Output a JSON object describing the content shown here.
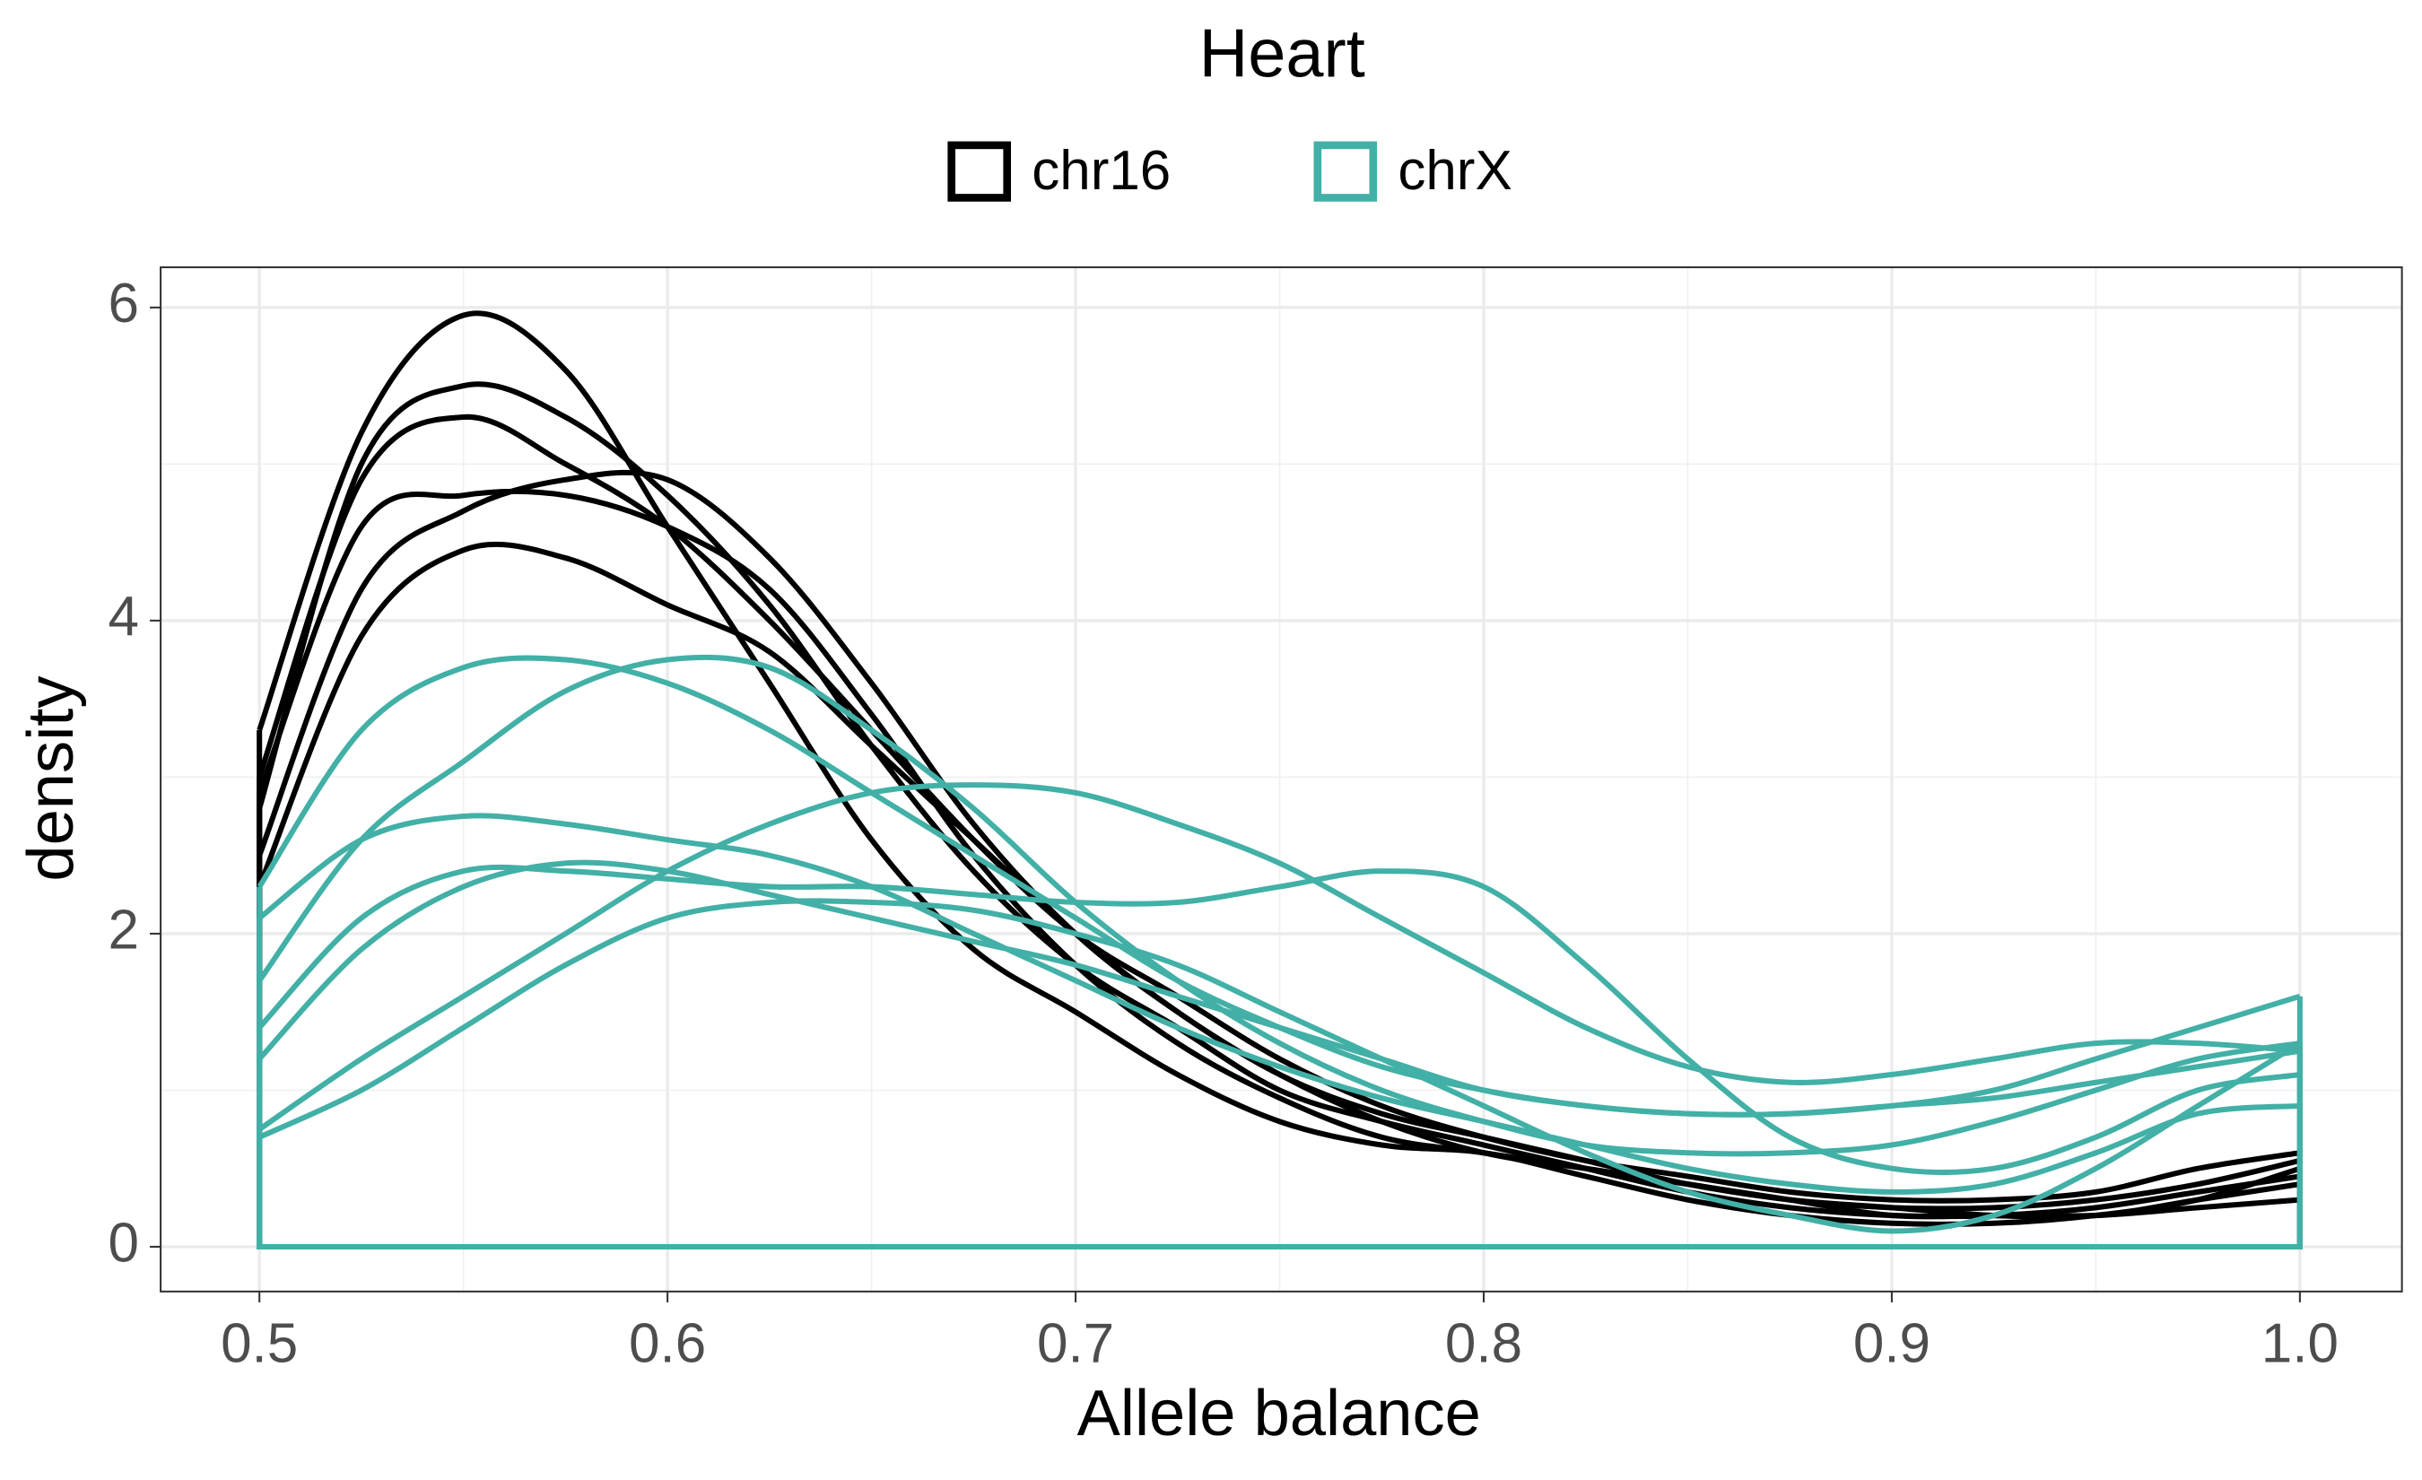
{
  "chart_data": {
    "type": "density",
    "title": "Heart",
    "x_label": "Allele balance",
    "y_label": "density",
    "x": [
      0.5,
      0.525,
      0.55,
      0.575,
      0.6,
      0.625,
      0.65,
      0.675,
      0.7,
      0.725,
      0.75,
      0.775,
      0.8,
      0.825,
      0.85,
      0.875,
      0.9,
      0.925,
      0.95,
      0.975,
      1.0
    ],
    "series": [
      {
        "name": "chr16",
        "color": "#000000",
        "curves": [
          [
            3.3,
            5.2,
            5.95,
            5.6,
            4.6,
            3.6,
            2.6,
            1.9,
            1.5,
            1.1,
            0.8,
            0.65,
            0.6,
            0.45,
            0.3,
            0.2,
            0.15,
            0.15,
            0.2,
            0.3,
            0.5
          ],
          [
            2.8,
            5.0,
            5.5,
            5.3,
            4.8,
            4.1,
            3.2,
            2.4,
            1.8,
            1.4,
            1.0,
            0.8,
            0.65,
            0.5,
            0.35,
            0.25,
            0.2,
            0.2,
            0.25,
            0.35,
            0.45
          ],
          [
            2.3,
            3.9,
            4.45,
            4.4,
            4.1,
            3.8,
            3.2,
            2.6,
            2.0,
            1.5,
            1.1,
            0.8,
            0.6,
            0.5,
            0.4,
            0.3,
            0.25,
            0.2,
            0.2,
            0.3,
            0.4
          ],
          [
            2.5,
            4.2,
            4.7,
            4.9,
            4.9,
            4.4,
            3.6,
            2.7,
            2.0,
            1.5,
            1.1,
            0.85,
            0.7,
            0.55,
            0.4,
            0.3,
            0.25,
            0.25,
            0.3,
            0.4,
            0.55
          ],
          [
            3.0,
            4.9,
            5.3,
            5.0,
            4.6,
            4.0,
            3.3,
            2.6,
            2.0,
            1.6,
            1.2,
            0.9,
            0.7,
            0.55,
            0.45,
            0.35,
            0.3,
            0.3,
            0.35,
            0.5,
            0.6
          ],
          [
            2.9,
            4.6,
            4.8,
            4.8,
            4.6,
            4.2,
            3.4,
            2.5,
            1.8,
            1.3,
            0.95,
            0.7,
            0.6,
            0.5,
            0.4,
            0.3,
            0.2,
            0.2,
            0.2,
            0.25,
            0.3
          ]
        ]
      },
      {
        "name": "chrX",
        "color": "#42b0a6",
        "curves": [
          [
            2.3,
            3.3,
            3.7,
            3.75,
            3.6,
            3.3,
            2.9,
            2.5,
            2.1,
            1.7,
            1.4,
            1.15,
            1.0,
            0.9,
            0.85,
            0.85,
            0.9,
            1.0,
            1.2,
            1.4,
            1.6
          ],
          [
            1.7,
            2.6,
            3.1,
            3.55,
            3.75,
            3.7,
            3.3,
            2.8,
            2.2,
            1.7,
            1.3,
            1.0,
            0.8,
            0.65,
            0.6,
            0.6,
            0.65,
            0.8,
            1.0,
            1.2,
            1.3
          ],
          [
            0.75,
            1.2,
            1.6,
            2.0,
            2.4,
            2.7,
            2.9,
            2.95,
            2.9,
            2.7,
            2.45,
            2.1,
            1.75,
            1.4,
            1.15,
            1.05,
            1.1,
            1.2,
            1.3,
            1.3,
            1.25
          ],
          [
            1.4,
            2.1,
            2.4,
            2.4,
            2.35,
            2.3,
            2.3,
            2.25,
            2.2,
            2.2,
            2.3,
            2.4,
            2.3,
            1.8,
            1.2,
            0.7,
            0.5,
            0.5,
            0.7,
            1.0,
            1.1
          ],
          [
            2.1,
            2.6,
            2.75,
            2.7,
            2.6,
            2.5,
            2.3,
            2.0,
            1.7,
            1.4,
            1.15,
            0.95,
            0.8,
            0.65,
            0.5,
            0.4,
            0.35,
            0.4,
            0.6,
            0.85,
            0.9
          ],
          [
            0.7,
            1.0,
            1.4,
            1.8,
            2.1,
            2.2,
            2.2,
            2.15,
            2.0,
            1.8,
            1.5,
            1.2,
            0.9,
            0.6,
            0.35,
            0.2,
            0.1,
            0.2,
            0.5,
            0.9,
            1.3
          ],
          [
            1.2,
            1.9,
            2.3,
            2.45,
            2.4,
            2.25,
            2.1,
            1.95,
            1.8,
            1.6,
            1.4,
            1.2,
            1.0,
            0.9,
            0.85,
            0.85,
            0.9,
            0.95,
            1.05,
            1.15,
            1.25
          ]
        ]
      }
    ],
    "xlim": [
      0.4758,
      1.025
    ],
    "ylim": [
      -0.286,
      6.257
    ],
    "xticks": [
      0.5,
      0.6,
      0.7,
      0.8,
      0.9,
      {
        "value": 1,
        "label": "1.0"
      }
    ],
    "yticks": [
      0,
      2,
      4,
      6
    ],
    "grid": true,
    "minor_grid": true,
    "legend": "top"
  }
}
